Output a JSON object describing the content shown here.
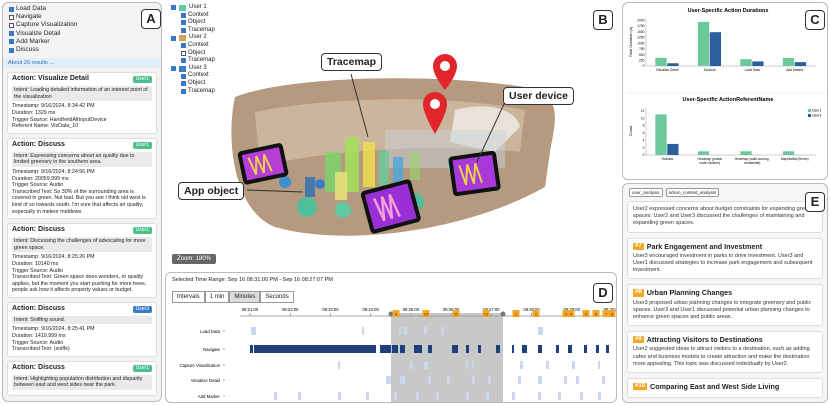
{
  "labels": {
    "a": "A",
    "b": "B",
    "c": "C",
    "d": "D",
    "e": "E"
  },
  "filters": [
    {
      "label": "Load Data",
      "checked": true
    },
    {
      "label": "Navigate",
      "checked": false
    },
    {
      "label": "Capture Visualization",
      "checked": false
    },
    {
      "label": "Visualize Detail",
      "checked": true
    },
    {
      "label": "Add Marker",
      "checked": true
    },
    {
      "label": "Discuss",
      "checked": true
    }
  ],
  "about": "About 26 results ...",
  "cards": [
    {
      "title": "Action: Visualize Detail",
      "user": "User1",
      "ucolor": "#4cc08b",
      "intent": "Intent: Loading detailed information of an interest point of the visualization",
      "lines": [
        "Timestamp: 9/16/2024, 8:34:42 PM",
        "Duration: 1329 ms",
        "Trigger Source: HandheldAltInputDevice",
        "Referent Name: VisData_10"
      ]
    },
    {
      "title": "Action: Discuss",
      "user": "User1",
      "ucolor": "#4cc08b",
      "intent": "Intent: Expressing concerns about air quality due to limited greenery in the southern area.",
      "lines": [
        "Timestamp: 9/16/2024, 8:24:56 PM",
        "Duration: 20059.999 ms",
        "Trigger Source: Audio",
        "Transcribed Text: So 30% of the surrounding area is covered in green. Not bad. But you see I think old west is kind of so towards south. I'm sure that affects air quality, especially in meteor middows."
      ]
    },
    {
      "title": "Action: Discuss",
      "user": "User1",
      "ucolor": "#4cc08b",
      "intent": "Intent: Discussing the challenges of advocating for more green space.",
      "lines": [
        "Timestamp: 9/16/2024, 8:25:26 PM",
        "Duration: 10140 ms",
        "Trigger Source: Audio",
        "Transcribed Text: Green space does wonders, or quality applies, but the moment you start pushing for more trees, people ask how it affects property values or budget."
      ]
    },
    {
      "title": "Action: Discuss",
      "user": "User3",
      "ucolor": "#3a7dc9",
      "intent": "Intent: Sniffing sound.",
      "lines": [
        "Timestamp: 9/16/2024, 8:25:41 PM",
        "Duration: 1419.999 ms",
        "Trigger Source: Audio",
        "Transcribed Text: (sniffs)"
      ]
    },
    {
      "title": "Action: Discuss",
      "user": "User1",
      "ucolor": "#4cc08b",
      "intent": "Intent: Highlighting population distribution and disparity between east and west sides near the park.",
      "lines": []
    }
  ],
  "legend": [
    {
      "user": "User 1",
      "color": "#5fc9a0",
      "items": [
        {
          "label": "Context",
          "checked": true
        },
        {
          "label": "Object",
          "checked": true
        },
        {
          "label": "Tracemap",
          "checked": true
        }
      ]
    },
    {
      "user": "User 2",
      "color": "#d6a15a",
      "items": [
        {
          "label": "Context",
          "checked": true
        },
        {
          "label": "Object",
          "checked": false
        },
        {
          "label": "Tracemap",
          "checked": true
        }
      ]
    },
    {
      "user": "User 3",
      "color": "#3a7dc9",
      "items": [
        {
          "label": "Context",
          "checked": true
        },
        {
          "label": "Object",
          "checked": true
        },
        {
          "label": "Tracemap",
          "checked": true
        }
      ]
    }
  ],
  "callouts": {
    "tracemap": "Tracemap",
    "device": "User device",
    "object": "App object"
  },
  "zoom": "Zoom: 180%",
  "chart_data": [
    {
      "type": "bar",
      "title": "User-Specific Action Durations",
      "xlabel": "",
      "ylabel": "Total Duration (s)",
      "categories": [
        "Visualize Detail",
        "Discuss",
        "Load Data",
        "Add Marker"
      ],
      "series": [
        {
          "name": "User1",
          "color": "#6cc99a",
          "values": [
            360,
            1930,
            300,
            350
          ]
        },
        {
          "name": "User3",
          "color": "#2d5f9e",
          "values": [
            120,
            1480,
            200,
            170
          ]
        }
      ],
      "yticks": [
        0,
        250,
        500,
        750,
        1000,
        1250,
        1500,
        1750,
        2000
      ],
      "ylim": [
        0,
        2100
      ]
    },
    {
      "type": "bar",
      "title": "User-Specific ActionReferentName",
      "xlabel": "",
      "ylabel": "Count",
      "categories": [
        "VisData",
        "Heatmap (postal code Ukraine)",
        "Heatmap (walk-scoring, residential)",
        "MapMarker(Demo)"
      ],
      "series": [
        {
          "name": "User1",
          "color": "#6cc99a",
          "values": [
            11,
            1,
            1,
            1
          ]
        },
        {
          "name": "User3",
          "color": "#2d5f9e",
          "values": [
            3,
            0,
            0,
            0
          ]
        }
      ],
      "yticks": [
        0,
        2,
        4,
        6,
        8,
        10,
        12
      ],
      "ylim": [
        0,
        13
      ],
      "legend": [
        "User1",
        "User3"
      ]
    }
  ],
  "timeline": {
    "range": "Selected Time Range: Sep 16 08:31:00 PM - Sep 16 08:27:07 PM",
    "intervals_label": "Intervals",
    "intervals": [
      "1 min",
      "Minutes",
      "Seconds"
    ],
    "ticks": [
      "08:21:00",
      "08:22:00",
      "08:23:00",
      "08:24:00",
      "08:25:00",
      "08:26:00",
      "08:27:00",
      "08:28:00",
      "08:29:00",
      "08:30:00"
    ],
    "rows": [
      "Load Data",
      "Navigate",
      "Capture Visualization",
      "Visualize Detail",
      "Add Marker"
    ],
    "markers": [
      "9",
      "10",
      "11",
      "12",
      "1",
      "2",
      "3",
      "4",
      "5",
      "6",
      "7",
      "8"
    ]
  },
  "topics": {
    "tabs": [
      "user_analysis",
      "action_context_analysis"
    ],
    "items": [
      {
        "num": "",
        "title": "",
        "text": "User2 expressed concerns about budget constraints for expanding green spaces. User2 and User3 discussed the challenges of maintaining and expanding green spaces."
      },
      {
        "num": "#7",
        "title": "Park Engagement and Investment",
        "text": "User3 encouraged investment in parks to drive investment. User3 and User1 discussed strategies to increase park engagement and subsequent investment."
      },
      {
        "num": "#8",
        "title": "Urban Planning Changes",
        "text": "User3 proposed urban planning changes to integrate greenery and public spaces. User3 and User1 discussed potential urban planning changes to enhance green spaces and public areas."
      },
      {
        "num": "#9",
        "title": "Attracting Visitors to Destinations",
        "text": "User2 suggested ideas to attract visitors to a destination, such as adding cafes and business models to create attraction and make the destination more appealing. This topic was discussed individually by User2."
      },
      {
        "num": "#10",
        "title": "Comparing East and West Side Living",
        "text": ""
      }
    ]
  }
}
